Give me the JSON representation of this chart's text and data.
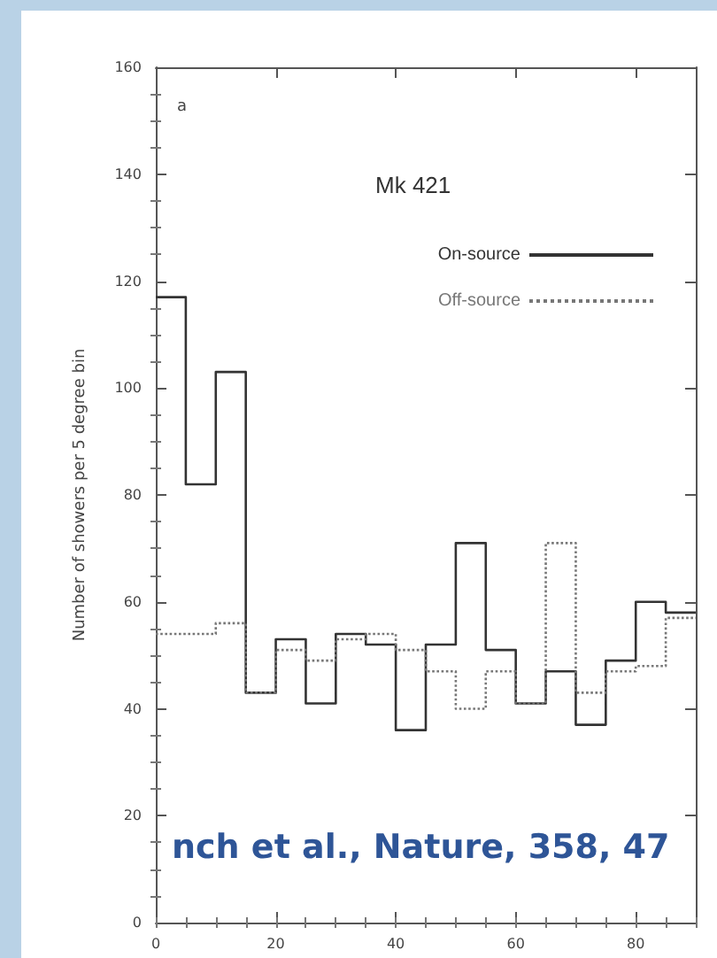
{
  "chart_data": {
    "type": "histogram",
    "ylabel": "Number of showers per 5 degree bin",
    "annotations": [
      "a",
      "Mk 421",
      "nch et al., Nature, 358, 47"
    ],
    "bins": [
      0,
      5,
      10,
      15,
      20,
      25,
      30,
      35,
      40,
      45,
      50,
      55,
      60,
      65,
      70,
      75,
      80,
      85,
      90
    ],
    "series": [
      {
        "name": "On-source",
        "color": "#333333",
        "line_style": "solid",
        "values": [
          117,
          82,
          103,
          43,
          53,
          41,
          54,
          52,
          36,
          52,
          71,
          51,
          41,
          47,
          37,
          49,
          60,
          58
        ]
      },
      {
        "name": "Off-source",
        "color": "#777777",
        "line_style": "dotted",
        "values": [
          54,
          54,
          56,
          43,
          51,
          49,
          53,
          54,
          51,
          47,
          40,
          47,
          41,
          71,
          43,
          47,
          48,
          57
        ]
      }
    ],
    "xlim": [
      0,
      90
    ],
    "xticks": [
      0,
      20,
      40,
      60,
      80
    ],
    "ylim": [
      0,
      160
    ],
    "yticks": [
      0,
      20,
      40,
      60,
      80,
      100,
      120,
      140,
      160
    ],
    "grid": false,
    "legend": "top right"
  }
}
